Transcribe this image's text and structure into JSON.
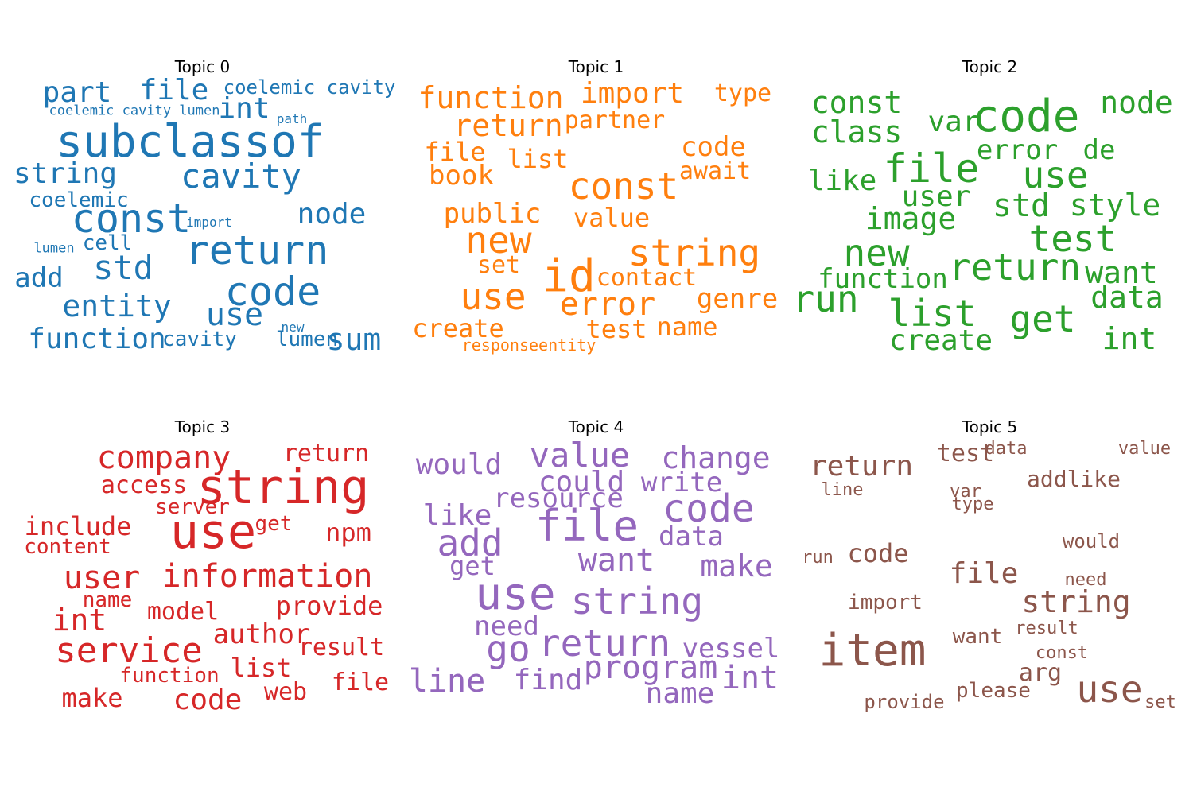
{
  "topics": [
    {
      "title": "Topic 0",
      "color": "#1f77b4",
      "words": [
        "part",
        "file",
        "coelemic cavity",
        "coelemic cavity lumen",
        "int",
        "path",
        "subclassof",
        "string",
        "cavity",
        "coelemic",
        "const",
        "import",
        "node",
        "lumen",
        "cell",
        "return",
        "add",
        "std",
        "code",
        "entity",
        "use",
        "new",
        "function",
        "cavity",
        "lumen",
        "sum"
      ]
    },
    {
      "title": "Topic 1",
      "color": "#ff7f0e",
      "words": [
        "function",
        "import",
        "type",
        "return",
        "partner",
        "file",
        "list",
        "code",
        "book",
        "await",
        "const",
        "public",
        "value",
        "new",
        "string",
        "set",
        "id",
        "contact",
        "use",
        "error",
        "genre",
        "create",
        "test",
        "name",
        "responseentity"
      ]
    },
    {
      "title": "Topic 2",
      "color": "#2ca02c",
      "words": [
        "const",
        "code",
        "node",
        "class",
        "var",
        "error",
        "de",
        "file",
        "use",
        "like",
        "user",
        "std",
        "style",
        "image",
        "test",
        "new",
        "return",
        "function",
        "want",
        "run",
        "data",
        "list",
        "get",
        "create",
        "int"
      ]
    },
    {
      "title": "Topic 3",
      "color": "#d62728",
      "words": [
        "company",
        "return",
        "string",
        "access",
        "server",
        "include",
        "use",
        "get",
        "npm",
        "content",
        "user",
        "information",
        "name",
        "provide",
        "int",
        "model",
        "author",
        "service",
        "result",
        "list",
        "function",
        "file",
        "web",
        "make",
        "code"
      ]
    },
    {
      "title": "Topic 4",
      "color": "#9467bd",
      "words": [
        "value",
        "change",
        "would",
        "could",
        "write",
        "resource",
        "code",
        "like",
        "file",
        "add",
        "data",
        "want",
        "make",
        "get",
        "use",
        "string",
        "need",
        "go",
        "return",
        "vessel",
        "program",
        "line",
        "find",
        "int",
        "name"
      ]
    },
    {
      "title": "Topic 5",
      "color": "#8c564b",
      "words": [
        "test",
        "data",
        "value",
        "return",
        "addlike",
        "line",
        "var",
        "type",
        "would",
        "run",
        "code",
        "file",
        "need",
        "import",
        "string",
        "result",
        "want",
        "const",
        "item",
        "arg",
        "please",
        "use",
        "provide",
        "set"
      ]
    }
  ]
}
